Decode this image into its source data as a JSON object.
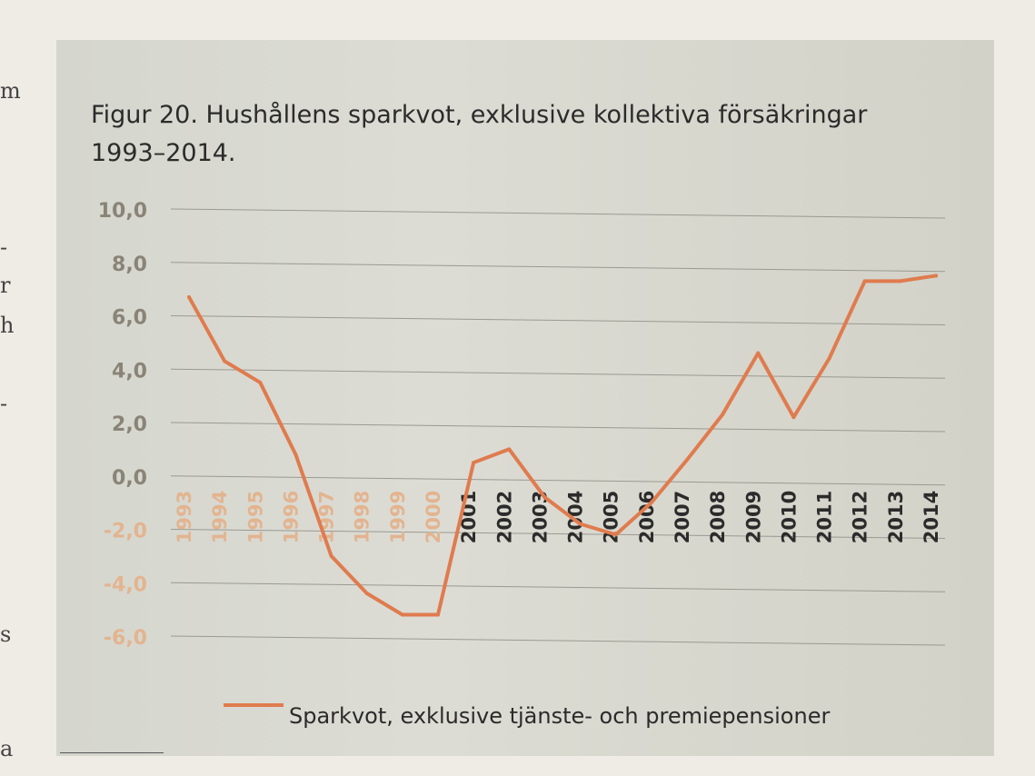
{
  "margin_letters": [
    "m",
    "-",
    "r",
    "h",
    "-",
    "s",
    "a"
  ],
  "chart_data": {
    "type": "line",
    "title": "Figur 20. Hushållens sparkvot, exklusive kollektiva försäkringar 1993–2014.",
    "title_lines": [
      "Figur 20. Hushållens sparkvot, exklusive kollektiva försäkringar",
      "1993–2014."
    ],
    "xlabel": "",
    "ylabel": "",
    "categories": [
      "1993",
      "1994",
      "1995",
      "1996",
      "1997",
      "1998",
      "1999",
      "2000",
      "2001",
      "2002",
      "2003",
      "2004",
      "2005",
      "2006",
      "2007",
      "2008",
      "2009",
      "2010",
      "2011",
      "2012",
      "2013",
      "2014"
    ],
    "series": [
      {
        "name": "Sparkvot, exklusive tjänste- och premiepensioner",
        "color": "#e07b4e",
        "values": [
          6.7,
          4.3,
          3.5,
          0.8,
          -3.0,
          -4.4,
          -5.2,
          -5.2,
          0.5,
          1.0,
          -0.8,
          -1.8,
          -2.2,
          -1.0,
          0.6,
          2.3,
          4.6,
          2.2,
          4.4,
          7.3,
          7.3,
          7.5
        ]
      }
    ],
    "ylim": [
      -6.0,
      10.0
    ],
    "yticks": [
      "10,0",
      "8,0",
      "6,0",
      "4,0",
      "2,0",
      "0,0",
      "-2,0",
      "-4,0",
      "-6,0"
    ],
    "ytick_values": [
      10,
      8,
      6,
      4,
      2,
      0,
      -2,
      -4,
      -6
    ],
    "grid": true,
    "legend": "bottom"
  }
}
